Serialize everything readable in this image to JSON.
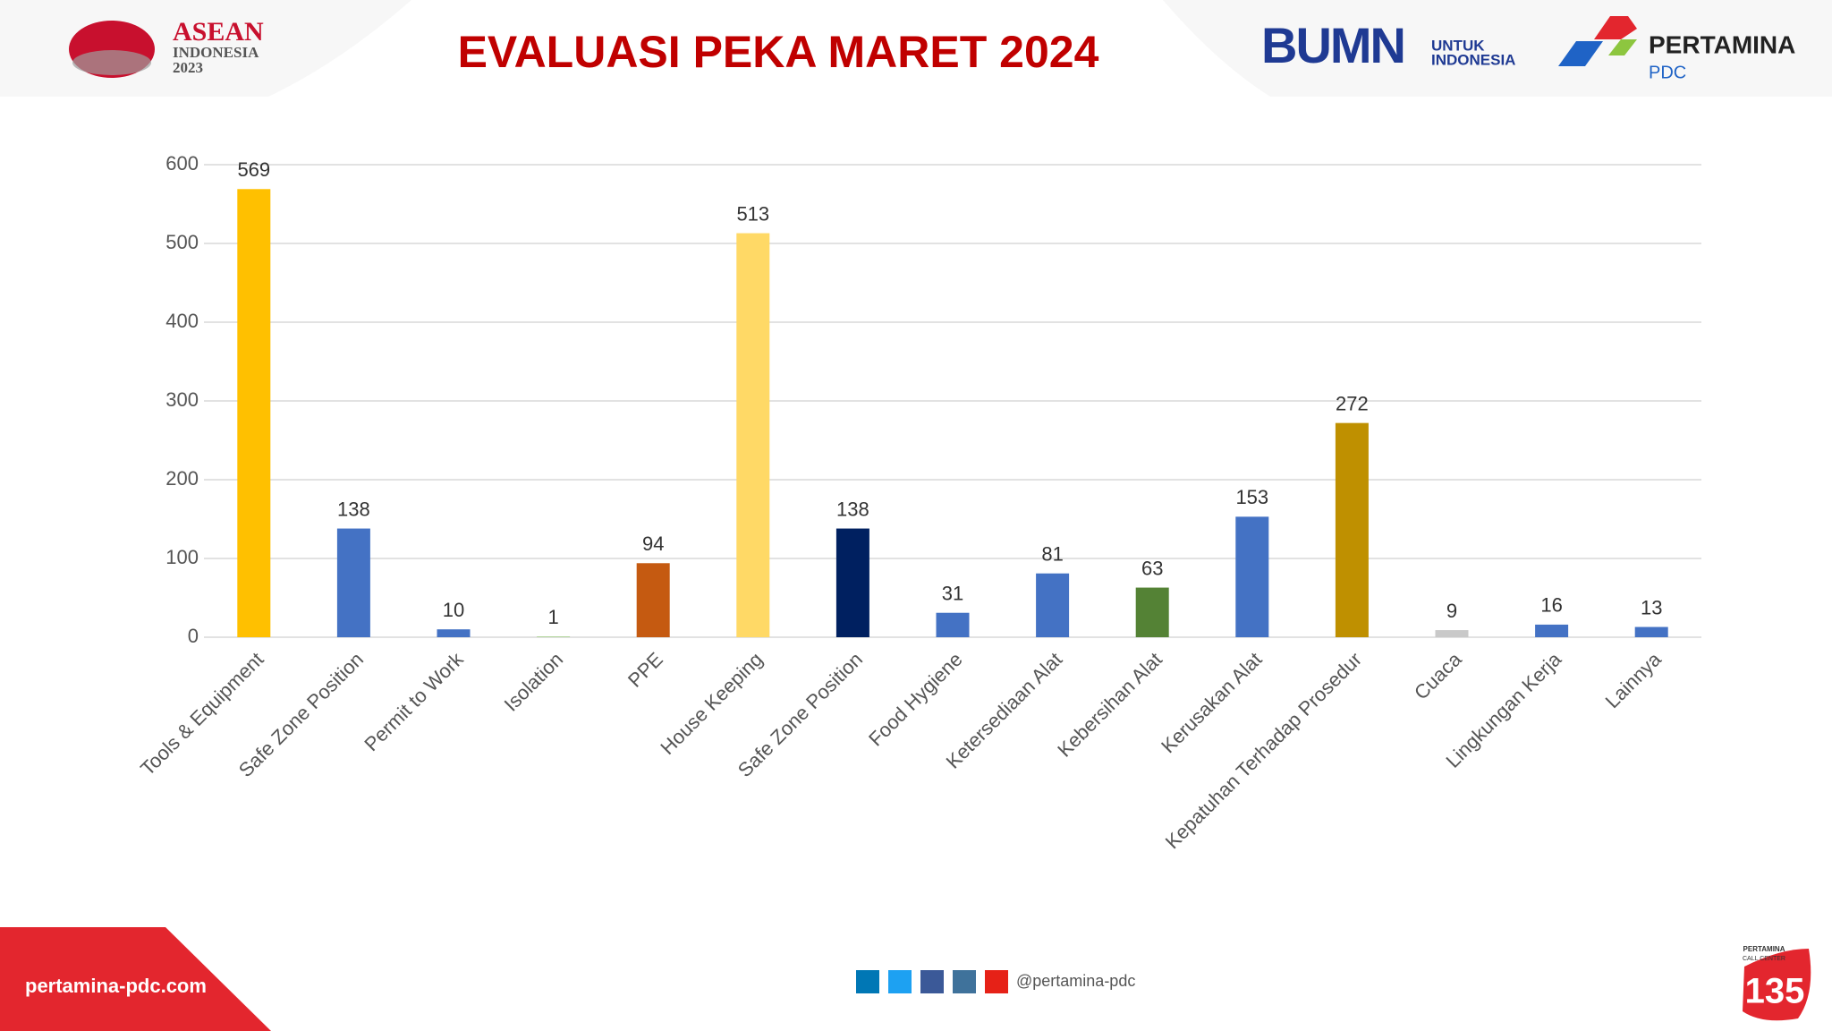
{
  "header": {
    "asean_logo": [
      "ASEAN",
      "INDONESIA",
      "2023"
    ],
    "bumn_logo": [
      "BUMN",
      "UNTUK",
      "INDONESIA"
    ],
    "pertamina_logo": [
      "PERTAMINA",
      "PDC"
    ]
  },
  "footer": {
    "website": "pertamina-pdc.com",
    "social_handle": "@pertamina-pdc",
    "call_center": [
      "PERTAMINA",
      "CALL CENTER",
      "135"
    ]
  },
  "chart_data": {
    "type": "bar",
    "title": "EVALUASI PEKA MARET 2024",
    "categories": [
      "Tools & Equipment",
      "Safe Zone Position",
      "Permit to Work",
      "Isolation",
      "PPE",
      "House Keeping",
      "Safe Zone Position",
      "Food Hygiene",
      "Ketersediaan Alat",
      "Kebersihan Alat",
      "Kerusakan Alat",
      "Kepatuhan Terhadap Prosedur",
      "Cuaca",
      "Lingkungan Kerja",
      "Lainnya"
    ],
    "values": [
      569,
      138,
      10,
      1,
      94,
      513,
      138,
      31,
      81,
      63,
      153,
      272,
      9,
      16,
      13
    ],
    "colors": [
      "#ffc000",
      "#4472c4",
      "#4472c4",
      "#a9d18e",
      "#c55a11",
      "#ffd966",
      "#002060",
      "#4472c4",
      "#4472c4",
      "#548235",
      "#4472c4",
      "#bf9000",
      "#c9c9c9",
      "#4472c4",
      "#4472c4"
    ],
    "ylim": [
      0,
      600
    ],
    "yticks": [
      0,
      100,
      200,
      300,
      400,
      500,
      600
    ],
    "grid": true
  }
}
